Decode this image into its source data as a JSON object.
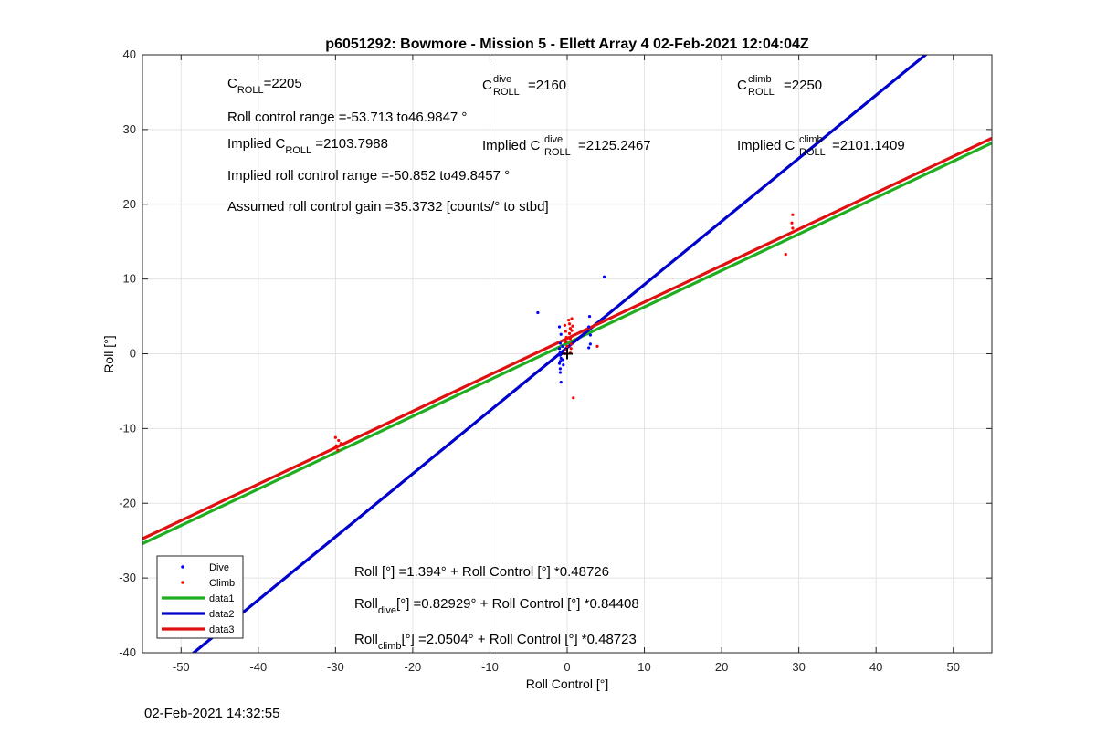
{
  "chart_data": {
    "type": "scatter",
    "title": "p6051292: Bowmore - Mission 5 - Ellett Array 4 02-Feb-2021 12:04:04Z",
    "xlabel": "Roll Control [°]",
    "ylabel": "Roll [°]",
    "xlim": [
      -55,
      55
    ],
    "ylim": [
      -40,
      40
    ],
    "xticks": [
      -50,
      -40,
      -30,
      -20,
      -10,
      0,
      10,
      20,
      30,
      40,
      50
    ],
    "yticks": [
      -40,
      -30,
      -20,
      -10,
      0,
      10,
      20,
      30,
      40
    ],
    "grid": true,
    "legend_position": "bottom-left",
    "series": [
      {
        "name": "Dive",
        "kind": "points",
        "color": "#0000ff",
        "points": [
          [
            -3.8,
            5.5
          ],
          [
            -1.0,
            3.6
          ],
          [
            -0.8,
            2.6
          ],
          [
            -0.9,
            1.4
          ],
          [
            -1.0,
            0.7
          ],
          [
            -0.9,
            0.2
          ],
          [
            -0.9,
            -0.2
          ],
          [
            -0.8,
            -0.6
          ],
          [
            -0.9,
            -1.0
          ],
          [
            -1.0,
            -1.3
          ],
          [
            -0.9,
            -2.0
          ],
          [
            -0.9,
            -2.5
          ],
          [
            -0.8,
            -3.8
          ],
          [
            -0.6,
            1.0
          ],
          [
            -0.7,
            0.0
          ],
          [
            -0.6,
            -0.8
          ],
          [
            -0.5,
            -1.5
          ],
          [
            2.9,
            5.0
          ],
          [
            2.8,
            3.6
          ],
          [
            3.0,
            2.5
          ],
          [
            3.0,
            1.3
          ],
          [
            2.8,
            0.8
          ],
          [
            4.8,
            10.3
          ]
        ]
      },
      {
        "name": "Climb",
        "kind": "points",
        "color": "#ff0000",
        "points": [
          [
            -30.0,
            -11.2
          ],
          [
            -29.6,
            -11.6
          ],
          [
            -29.3,
            -12.0
          ],
          [
            -29.9,
            -12.3
          ],
          [
            -30.1,
            -12.6
          ],
          [
            -29.7,
            -12.9
          ],
          [
            -0.3,
            3.8
          ],
          [
            -0.2,
            3.0
          ],
          [
            -0.1,
            2.2
          ],
          [
            -0.2,
            1.6
          ],
          [
            0.0,
            1.0
          ],
          [
            -0.1,
            0.5
          ],
          [
            0.2,
            4.5
          ],
          [
            0.3,
            4.0
          ],
          [
            0.4,
            3.4
          ],
          [
            0.3,
            2.7
          ],
          [
            0.4,
            2.0
          ],
          [
            0.5,
            1.3
          ],
          [
            0.5,
            0.7
          ],
          [
            0.6,
            4.7
          ],
          [
            0.7,
            3.7
          ],
          [
            0.6,
            3.1
          ],
          [
            -0.3,
            0.0
          ],
          [
            0.4,
            0.1
          ],
          [
            0.8,
            -5.9
          ],
          [
            3.9,
            1.0
          ],
          [
            28.3,
            13.3
          ],
          [
            29.2,
            18.6
          ],
          [
            29.1,
            17.5
          ],
          [
            29.2,
            16.8
          ]
        ]
      },
      {
        "name": "data1",
        "kind": "line",
        "color": "#1fae1f",
        "intercept": 1.394,
        "slope": 0.48726
      },
      {
        "name": "data2",
        "kind": "line",
        "color": "#0000cc",
        "intercept": 0.82929,
        "slope": 0.84408
      },
      {
        "name": "data3",
        "kind": "line",
        "color": "#e01010",
        "intercept": 2.0504,
        "slope": 0.48723
      }
    ],
    "marker": {
      "symbol": "+",
      "x": 0,
      "y": 0
    },
    "annotations": {
      "c_roll": "2205",
      "c_roll_dive": "2160",
      "c_roll_climb": "2250",
      "control_range": "Roll control range =-53.713 to46.9847 °",
      "implied_c_roll": "2103.7988",
      "implied_c_roll_dive": "2125.2467",
      "implied_c_roll_climb": "2101.1409",
      "implied_range": "Implied roll control range =-50.852 to49.8457 °",
      "gain": "Assumed roll control gain =35.3732 [counts/° to stbd]",
      "fit_all": "Roll [°] =1.394° + Roll Control [°] *0.48726",
      "fit_dive_tail": "[°] =0.82929° + Roll Control [°] *0.84408",
      "fit_climb_tail": "[°] =2.0504° + Roll Control [°] *0.48723",
      "roll_word": "Roll",
      "c_letter": "C",
      "roll_sub": "ROLL",
      "dive_word": "dive",
      "climb_word": "climb",
      "implied_word": "Implied"
    }
  },
  "footer_timestamp": "02-Feb-2021 14:32:55"
}
